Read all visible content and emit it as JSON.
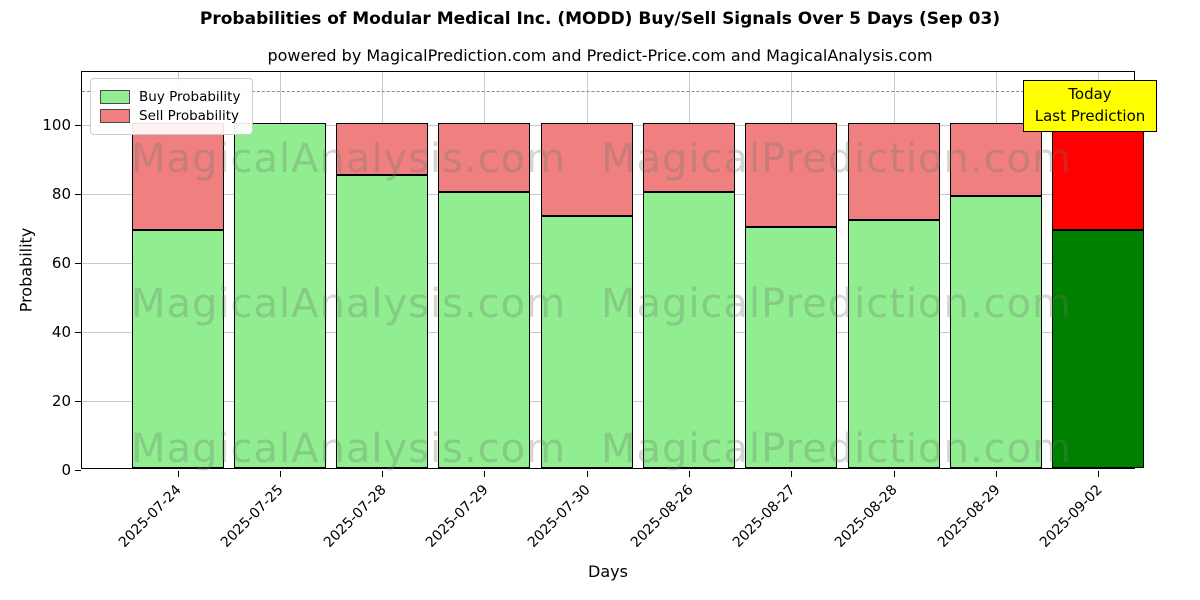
{
  "title": "Probabilities of Modular Medical Inc. (MODD) Buy/Sell Signals Over 5 Days (Sep 03)",
  "subtitle": "powered by MagicalPrediction.com and Predict-Price.com and MagicalAnalysis.com",
  "axes": {
    "x_label": "Days",
    "y_label": "Probability",
    "y_ticks": [
      0,
      20,
      40,
      60,
      80,
      100
    ],
    "y_max": 115.4,
    "dashed_line_y": 110,
    "grid": true
  },
  "legend": {
    "items": [
      {
        "label": "Buy Probability",
        "color": "#90EE90"
      },
      {
        "label": "Sell Probability",
        "color": "#F08080"
      }
    ]
  },
  "annotation": {
    "line1": "Today",
    "line2": "Last Prediction",
    "bg_color": "#FFFF00"
  },
  "watermarks": [
    "MagicalAnalysis.com",
    "MagicalPrediction.com"
  ],
  "colors": {
    "buy_normal": "#90EE90",
    "sell_normal": "#F08080",
    "buy_today": "#008000",
    "sell_today": "#FF0000",
    "bar_edge": "#000000",
    "grid": "#c9c9c9"
  },
  "chart_data": {
    "type": "bar",
    "stacked": true,
    "title": "Probabilities of Modular Medical Inc. (MODD) Buy/Sell Signals Over 5 Days (Sep 03)",
    "xlabel": "Days",
    "ylabel": "Probability",
    "ylim": [
      0,
      115.4
    ],
    "grid": true,
    "legend_position": "upper left",
    "categories": [
      "2025-07-24",
      "2025-07-25",
      "2025-07-28",
      "2025-07-29",
      "2025-07-30",
      "2025-08-26",
      "2025-08-27",
      "2025-08-28",
      "2025-08-29",
      "2025-09-02"
    ],
    "series": [
      {
        "name": "Buy Probability",
        "values": [
          69,
          100,
          85,
          80,
          73,
          80,
          70,
          72,
          79,
          69
        ]
      },
      {
        "name": "Sell Probability",
        "values": [
          31,
          0,
          15,
          20,
          27,
          20,
          30,
          28,
          21,
          31
        ]
      }
    ],
    "today_index": 9,
    "dashed_reference_line": 110
  }
}
